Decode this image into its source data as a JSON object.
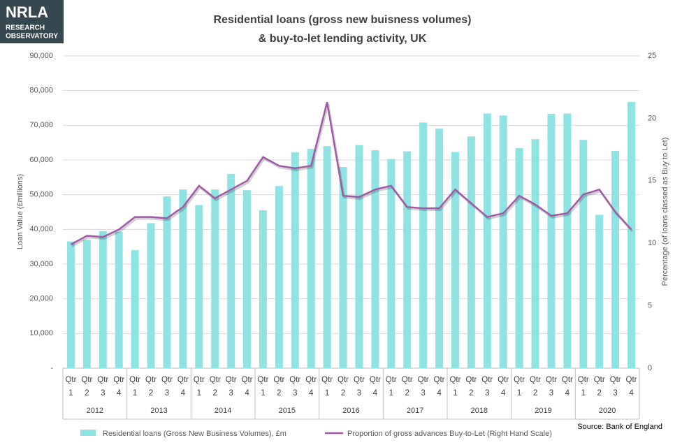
{
  "logo": {
    "name": "NRLA",
    "lines": [
      "RESEARCH",
      "OBSERVATORY"
    ]
  },
  "chart_data": {
    "type": "bar-line",
    "title": [
      "Residential loans (gross new buisness volumes)",
      "& buy-to-let lending activity, UK"
    ],
    "y_label": "Loan Value (£millions)",
    "y2_label": "Percentage (of loans classed  as Buy to Let)",
    "categories": [
      "Qtr 1",
      "Qtr 2",
      "Qtr 3",
      "Qtr 4",
      "Qtr 1",
      "Qtr 2",
      "Qtr 3",
      "Qtr 4",
      "Qtr 1",
      "Qtr 2",
      "Qtr 3",
      "Qtr 4",
      "Qtr 1",
      "Qtr 2",
      "Qtr 3",
      "Qtr 4",
      "Qtr 1",
      "Qtr 2",
      "Qtr 3",
      "Qtr 4",
      "Qtr 1",
      "Qtr 2",
      "Qtr 3",
      "Qtr 4",
      "Qtr 1",
      "Qtr 2",
      "Qtr 3",
      "Qtr 4",
      "Qtr 1",
      "Qtr 2",
      "Qtr 3",
      "Qtr 4",
      "Qtr 1",
      "Qtr 2",
      "Qtr 3",
      "Qtr 4"
    ],
    "years": [
      "2012",
      "2013",
      "2014",
      "2015",
      "2016",
      "2017",
      "2018",
      "2019",
      "2020"
    ],
    "series": [
      {
        "name": "Residential loans (Gross New Business Volumes),  £m",
        "type": "bar",
        "color": "#8fe3e3",
        "values": [
          36500,
          37000,
          39500,
          39300,
          34000,
          41800,
          49500,
          51500,
          47000,
          51500,
          56000,
          51300,
          45500,
          52500,
          62200,
          63200,
          64000,
          58000,
          64300,
          62800,
          60300,
          62500,
          70800,
          69000,
          62300,
          66800,
          73400,
          72800,
          63400,
          66000,
          73300,
          73400,
          65800,
          44200,
          62600,
          76700
        ]
      },
      {
        "name": "Proportion of gross advances Buy-to-Let (Right Hand Scale)",
        "type": "line",
        "axis": "y2",
        "color": "#a25aa6",
        "values": [
          9.9,
          10.6,
          10.5,
          11.1,
          12.1,
          12.1,
          12.0,
          12.9,
          14.6,
          13.6,
          14.3,
          15.0,
          16.9,
          16.2,
          16.0,
          16.2,
          21.3,
          13.8,
          13.7,
          14.3,
          14.6,
          12.9,
          12.8,
          12.8,
          14.3,
          13.2,
          12.1,
          12.4,
          13.8,
          13.1,
          12.2,
          12.4,
          13.9,
          14.3,
          12.5,
          11.1
        ]
      }
    ],
    "ylim": [
      0,
      90000
    ],
    "yticks": [
      {
        "value": 0,
        "label": "-"
      },
      {
        "value": 10000,
        "label": "10,000"
      },
      {
        "value": 20000,
        "label": "20,000"
      },
      {
        "value": 30000,
        "label": "30,000"
      },
      {
        "value": 40000,
        "label": "40,000"
      },
      {
        "value": 50000,
        "label": "50,000"
      },
      {
        "value": 60000,
        "label": "60,000"
      },
      {
        "value": 70000,
        "label": "70,000"
      },
      {
        "value": 80000,
        "label": "80,000"
      },
      {
        "value": 90000,
        "label": "90,000"
      }
    ],
    "y2lim": [
      0,
      25
    ],
    "y2ticks": [
      0,
      5,
      10,
      15,
      20,
      25
    ],
    "grid": true,
    "legend": "bottom",
    "source": "Source: Bank of England"
  }
}
